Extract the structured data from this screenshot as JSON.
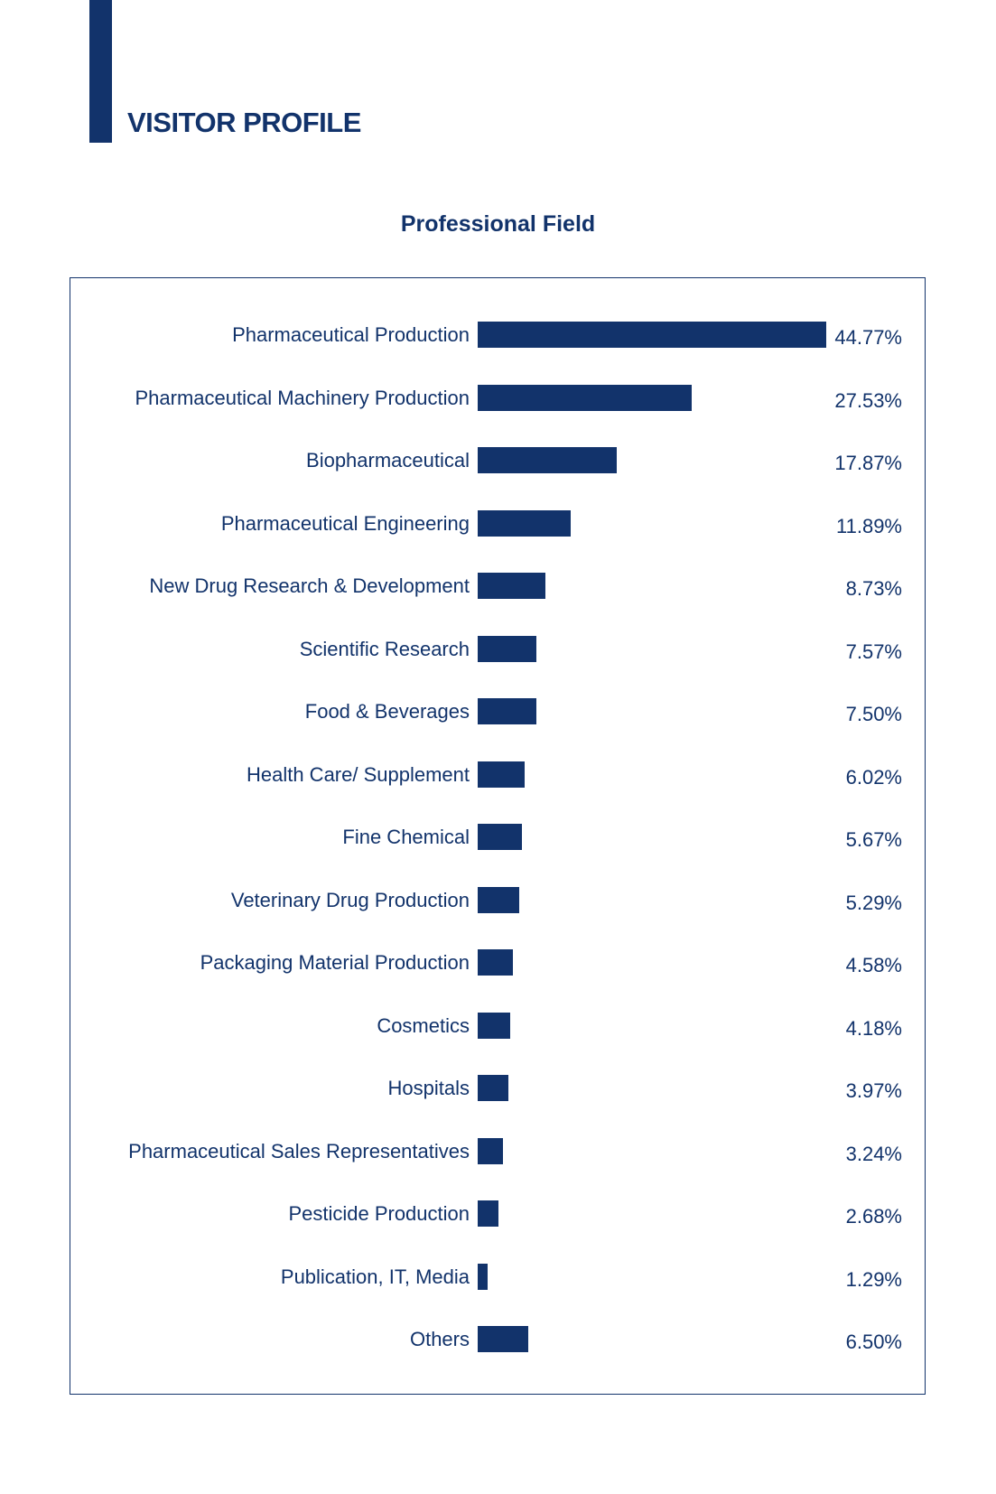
{
  "header": {
    "title": "VISITOR PROFILE"
  },
  "chart_data": {
    "type": "bar",
    "orientation": "horizontal",
    "title": "Professional Field",
    "xlabel": "",
    "ylabel": "",
    "categories": [
      "Pharmaceutical Production",
      "Pharmaceutical Machinery Production",
      "Biopharmaceutical",
      "Pharmaceutical Engineering",
      "New Drug Research & Development",
      "Scientific Research",
      "Food & Beverages",
      "Health Care/ Supplement",
      "Fine Chemical",
      "Veterinary Drug Production",
      "Packaging Material Production",
      "Cosmetics",
      "Hospitals",
      "Pharmaceutical Sales Representatives",
      "Pesticide Production",
      "Publication, IT, Media",
      "Others"
    ],
    "values": [
      44.77,
      27.53,
      17.87,
      11.89,
      8.73,
      7.57,
      7.5,
      6.02,
      5.67,
      5.29,
      4.58,
      4.18,
      3.97,
      3.24,
      2.68,
      1.29,
      6.5
    ],
    "value_labels": [
      "44.77%",
      "27.53%",
      "17.87%",
      "11.89%",
      "8.73%",
      "7.57%",
      "7.50%",
      "6.02%",
      "5.67%",
      "5.29%",
      "4.58%",
      "4.18%",
      "3.97%",
      "3.24%",
      "2.68%",
      "1.29%",
      "6.50%"
    ],
    "grid": false,
    "bar_color": "#12336b"
  }
}
